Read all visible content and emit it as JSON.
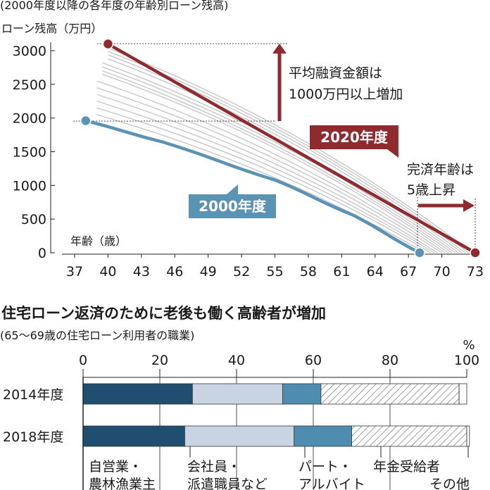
{
  "chart_data": [
    {
      "type": "line",
      "title": "(2000年度以降の各年度の年齢別ローン残高)",
      "ylabel": "ローン残高（万円）",
      "xlabel": "年齢（歳）",
      "xlim": [
        37,
        73
      ],
      "ylim": [
        0,
        3000
      ],
      "x_ticks": [
        37,
        40,
        43,
        46,
        49,
        52,
        55,
        58,
        61,
        64,
        67,
        70,
        73
      ],
      "y_ticks": [
        0,
        500,
        1000,
        1500,
        2000,
        2500,
        3000
      ],
      "grid": false,
      "series": [
        {
          "name": "2000年度",
          "color": "#5b93b4",
          "points": [
            [
              38,
              1960
            ],
            [
              45,
              1640
            ],
            [
              55,
              1080
            ],
            [
              62,
              560
            ],
            [
              68,
              0
            ]
          ]
        },
        {
          "name": "2020年度",
          "color": "#8f2a2e",
          "points": [
            [
              40,
              3100
            ],
            [
              73,
              0
            ]
          ]
        }
      ],
      "background_series": [
        {
          "start": [
            39,
            2050
          ],
          "end": [
            68.5,
            0
          ]
        },
        {
          "start": [
            39,
            2150
          ],
          "end": [
            69,
            0
          ]
        },
        {
          "start": [
            39,
            2250
          ],
          "end": [
            69.3,
            0
          ]
        },
        {
          "start": [
            39,
            2350
          ],
          "end": [
            69.6,
            0
          ]
        },
        {
          "start": [
            39,
            2450
          ],
          "end": [
            70,
            0
          ]
        },
        {
          "start": [
            39,
            2550
          ],
          "end": [
            70.3,
            0
          ]
        },
        {
          "start": [
            39.5,
            2650
          ],
          "end": [
            70.6,
            0
          ]
        },
        {
          "start": [
            39.5,
            2700
          ],
          "end": [
            70.9,
            0
          ]
        },
        {
          "start": [
            39.5,
            2760
          ],
          "end": [
            71.2,
            0
          ]
        },
        {
          "start": [
            39.5,
            2820
          ],
          "end": [
            71.5,
            0
          ]
        },
        {
          "start": [
            40,
            2880
          ],
          "end": [
            71.8,
            0
          ]
        },
        {
          "start": [
            40,
            2940
          ],
          "end": [
            72.1,
            0
          ]
        },
        {
          "start": [
            40,
            2990
          ],
          "end": [
            72.4,
            0
          ]
        },
        {
          "start": [
            40,
            3040
          ],
          "end": [
            72.7,
            0
          ]
        }
      ],
      "annotations": {
        "increase_line1": "平均融資金額は",
        "increase_line2": "1000万円以上増加",
        "age_line1": "完済年齢は",
        "age_line2": "5歳上昇"
      }
    },
    {
      "type": "bar",
      "orientation": "horizontal",
      "stacked": true,
      "title": "住宅ローン返済のために老後も働く高齢者が増加",
      "subtitle": "(65〜69歳の住宅ローン利用者の職業)",
      "unit": "%",
      "xlim": [
        0,
        100
      ],
      "x_ticks": [
        0,
        20,
        40,
        60,
        80,
        100
      ],
      "categories": [
        "2014年度",
        "2018年度"
      ],
      "series": [
        {
          "name": "自営業・農林漁業主",
          "label_line1": "自営業・",
          "label_line2": "農林漁業主",
          "color": "#1f4e70",
          "values": [
            28.5,
            26.5
          ]
        },
        {
          "name": "会社員・派遣職員など",
          "label_line1": "会社員・",
          "label_line2": "派遣職員など",
          "color": "#c8d4e2",
          "values": [
            23.5,
            28.5
          ]
        },
        {
          "name": "パート・アルバイト",
          "label_line1": "パート・",
          "label_line2": "アルバイト",
          "color": "#4f8db0",
          "values": [
            10,
            15
          ]
        },
        {
          "name": "年金受給者",
          "label_line1": "年金受給者",
          "label_line2": "",
          "color": "hatch",
          "values": [
            36,
            30
          ]
        },
        {
          "name": "その他",
          "label_line1": "その他",
          "label_line2": "",
          "color": "#ffffff",
          "values": [
            2,
            0.7
          ]
        }
      ]
    }
  ]
}
